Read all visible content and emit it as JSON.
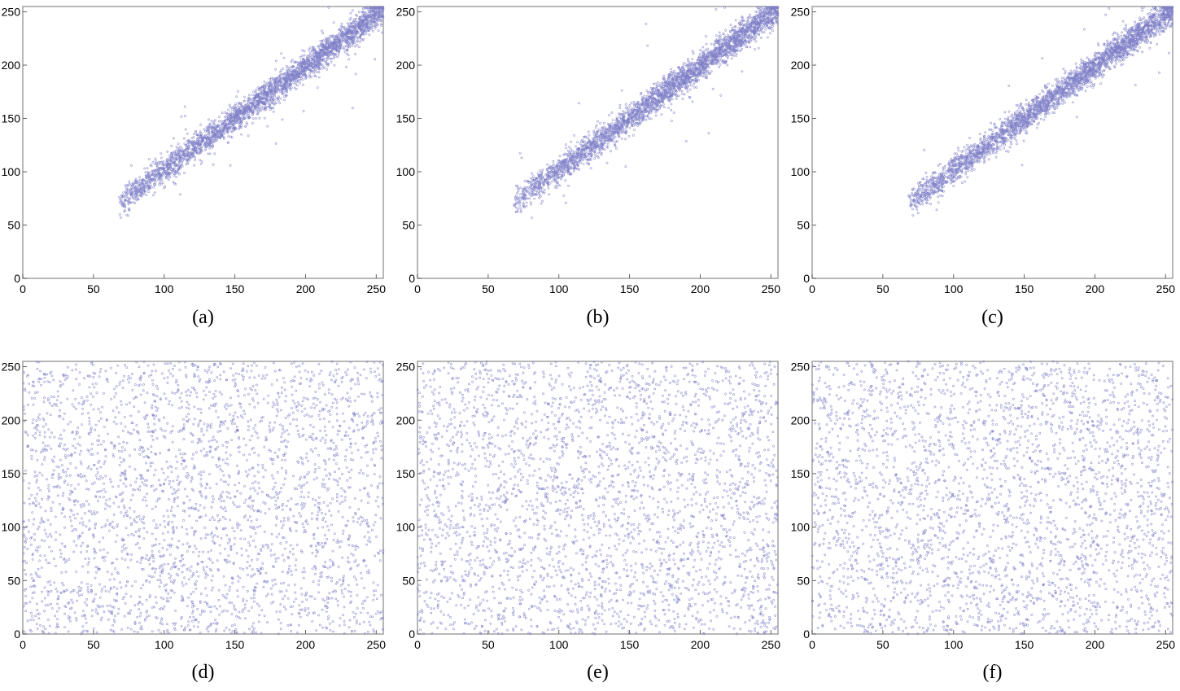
{
  "figure": {
    "marker_color": "#8080c8",
    "frame_color": "#a0a0a0"
  },
  "chart_data": [
    {
      "type": "scatter",
      "caption": "(a)",
      "distribution": "correlated",
      "xlim": [
        0,
        255
      ],
      "ylim": [
        0,
        255
      ],
      "xticks": [
        0,
        50,
        100,
        150,
        200,
        250
      ],
      "yticks": [
        0,
        50,
        100,
        150,
        200,
        250
      ],
      "xtick_labels": [
        "0",
        "50",
        "100",
        "150",
        "200",
        "250"
      ],
      "ytick_labels": [
        "0",
        "50",
        "100",
        "150",
        "200",
        "250"
      ],
      "x_range": [
        68,
        255
      ],
      "fit": {
        "slope": 0.975,
        "intercept": 4
      },
      "point_count": 3000
    },
    {
      "type": "scatter",
      "caption": "(b)",
      "distribution": "correlated",
      "xlim": [
        0,
        255
      ],
      "ylim": [
        0,
        255
      ],
      "xticks": [
        0,
        50,
        100,
        150,
        200,
        250
      ],
      "yticks": [
        0,
        50,
        100,
        150,
        200,
        250
      ],
      "xtick_labels": [
        "0",
        "50",
        "100",
        "150",
        "200",
        "250"
      ],
      "ytick_labels": [
        "0",
        "50",
        "100",
        "150",
        "200",
        "250"
      ],
      "x_range": [
        68,
        255
      ],
      "fit": {
        "slope": 0.975,
        "intercept": 4
      },
      "point_count": 3000
    },
    {
      "type": "scatter",
      "caption": "(c)",
      "distribution": "correlated",
      "xlim": [
        0,
        255
      ],
      "ylim": [
        0,
        255
      ],
      "xticks": [
        0,
        50,
        100,
        150,
        200,
        250
      ],
      "yticks": [
        0,
        50,
        100,
        150,
        200,
        250
      ],
      "xtick_labels": [
        "0",
        "50",
        "100",
        "150",
        "200",
        "250"
      ],
      "ytick_labels": [
        "0",
        "50",
        "100",
        "150",
        "200",
        "250"
      ],
      "x_range": [
        68,
        255
      ],
      "fit": {
        "slope": 0.975,
        "intercept": 4
      },
      "point_count": 3000
    },
    {
      "type": "scatter",
      "caption": "(d)",
      "distribution": "uniform",
      "xlim": [
        0,
        255
      ],
      "ylim": [
        0,
        255
      ],
      "xticks": [
        0,
        50,
        100,
        150,
        200,
        250
      ],
      "yticks": [
        0,
        50,
        100,
        150,
        200,
        250
      ],
      "xtick_labels": [
        "0",
        "50",
        "100",
        "150",
        "200",
        "250"
      ],
      "ytick_labels": [
        "0",
        "50",
        "100",
        "150",
        "200",
        "250"
      ],
      "x_range": [
        0,
        255
      ],
      "y_range": [
        0,
        255
      ],
      "point_count": 3000
    },
    {
      "type": "scatter",
      "caption": "(e)",
      "distribution": "uniform",
      "xlim": [
        0,
        255
      ],
      "ylim": [
        0,
        255
      ],
      "xticks": [
        0,
        50,
        100,
        150,
        200,
        250
      ],
      "yticks": [
        0,
        50,
        100,
        150,
        200,
        250
      ],
      "xtick_labels": [
        "0",
        "50",
        "100",
        "150",
        "200",
        "250"
      ],
      "ytick_labels": [
        "0",
        "50",
        "100",
        "150",
        "200",
        "250"
      ],
      "x_range": [
        0,
        255
      ],
      "y_range": [
        0,
        255
      ],
      "point_count": 3000
    },
    {
      "type": "scatter",
      "caption": "(f)",
      "distribution": "uniform",
      "xlim": [
        0,
        255
      ],
      "ylim": [
        0,
        255
      ],
      "xticks": [
        0,
        50,
        100,
        150,
        200,
        250
      ],
      "yticks": [
        0,
        50,
        100,
        150,
        200,
        250
      ],
      "xtick_labels": [
        "0",
        "50",
        "100",
        "150",
        "200",
        "250"
      ],
      "ytick_labels": [
        "0",
        "50",
        "100",
        "150",
        "200",
        "250"
      ],
      "x_range": [
        0,
        255
      ],
      "y_range": [
        0,
        255
      ],
      "point_count": 3000
    }
  ]
}
